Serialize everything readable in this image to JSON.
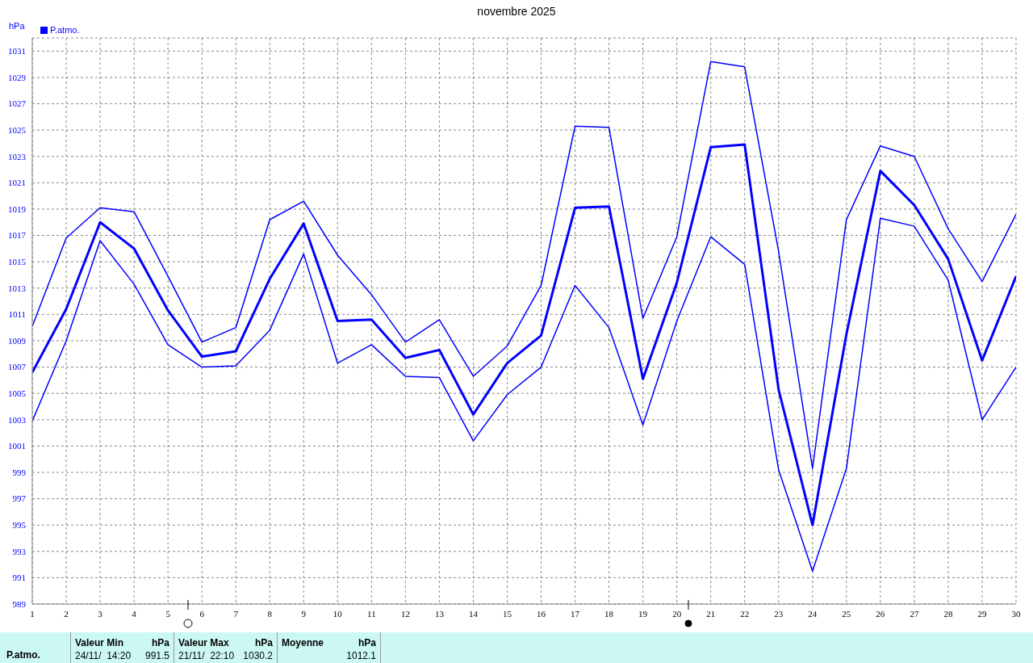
{
  "chart_data": {
    "type": "line",
    "title": "novembre 2025",
    "ylabel": "hPa",
    "x": [
      1,
      2,
      3,
      4,
      5,
      6,
      7,
      8,
      9,
      10,
      11,
      12,
      13,
      14,
      15,
      16,
      17,
      18,
      19,
      20,
      21,
      22,
      23,
      24,
      25,
      26,
      27,
      28,
      29,
      30
    ],
    "series": [
      {
        "color": "#0000ff",
        "values": [
          1010.1,
          1016.8,
          1019.1,
          1018.8,
          1013.9,
          1008.9,
          1010.0,
          1018.2,
          1019.6,
          1015.5,
          1012.5,
          1008.9,
          1010.6,
          1006.3,
          1008.6,
          1013.2,
          1025.3,
          1025.2,
          1010.7,
          1016.9,
          1030.2,
          1029.8,
          1015.8,
          999.3,
          1018.2,
          1023.8,
          1023.0,
          1017.5,
          1013.5,
          1018.6
        ]
      },
      {
        "name": "P.atmo.",
        "color": "#0000ff",
        "values": [
          1006.6,
          1011.4,
          1018.0,
          1016.0,
          1011.3,
          1007.8,
          1008.2,
          1013.7,
          1017.9,
          1010.5,
          1010.6,
          1007.7,
          1008.3,
          1003.4,
          1007.3,
          1009.4,
          1019.1,
          1019.2,
          1006.1,
          1013.4,
          1023.7,
          1023.9,
          1005.3,
          995.0,
          1009.5,
          1021.9,
          1019.3,
          1015.2,
          1007.5,
          1013.9
        ]
      },
      {
        "color": "#0000ff",
        "values": [
          1002.9,
          1009.0,
          1016.6,
          1013.3,
          1008.7,
          1007.0,
          1007.1,
          1009.8,
          1015.6,
          1007.3,
          1008.7,
          1006.3,
          1006.2,
          1001.4,
          1004.9,
          1007.0,
          1013.2,
          1010.0,
          1002.6,
          1010.5,
          1016.9,
          1014.8,
          999.2,
          991.5,
          999.3,
          1018.3,
          1017.7,
          1013.6,
          1003.0,
          1007.0
        ]
      }
    ],
    "xlim": [
      1,
      30
    ],
    "xticks": [
      1,
      2,
      3,
      4,
      5,
      6,
      7,
      8,
      9,
      10,
      11,
      12,
      13,
      14,
      15,
      16,
      17,
      18,
      19,
      20,
      21,
      22,
      23,
      24,
      25,
      26,
      27,
      28,
      29,
      30
    ],
    "ylim": [
      989,
      1032
    ],
    "yticks": [
      989,
      991,
      993,
      995,
      997,
      999,
      1001,
      1003,
      1005,
      1007,
      1009,
      1011,
      1013,
      1015,
      1017,
      1019,
      1021,
      1023,
      1025,
      1027,
      1029,
      1031
    ],
    "grid": true,
    "legend": "top left",
    "marker": "none",
    "line_style": "solid",
    "annotations": [
      "P.atmo.",
      "Valeur Min",
      "hPa",
      "24/11/  14:20",
      "991.5",
      "Valeur Max",
      "hPa",
      "21/11/  22:10",
      "1030.2",
      "Moyenne",
      "hPa",
      "1012.1"
    ]
  }
}
